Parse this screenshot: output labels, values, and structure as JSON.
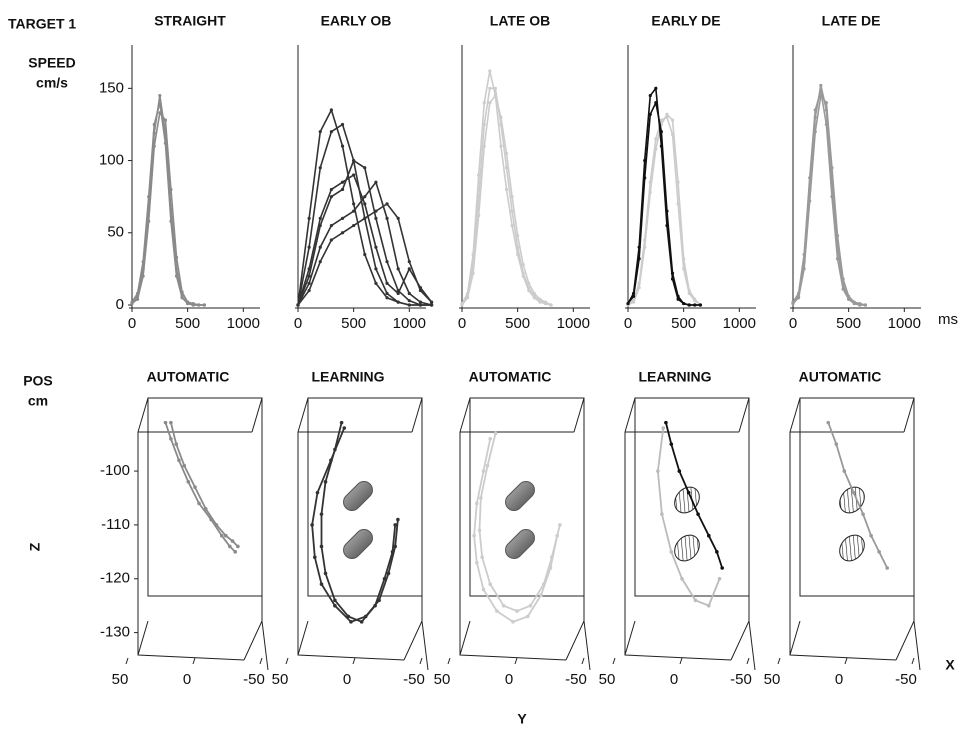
{
  "figure_label": "TARGET 1",
  "speed_label": "SPEED",
  "speed_unit": "cm/s",
  "time_unit": "ms",
  "pos_label": "POS",
  "pos_unit": "cm",
  "z_axis": "Z",
  "y_axis": "Y",
  "x_axis": "X",
  "chart_data": [
    {
      "type": "line",
      "title": "STRAIGHT",
      "x": [
        0,
        50,
        100,
        150,
        200,
        250,
        300,
        350,
        400,
        450,
        500,
        550,
        600,
        650
      ],
      "series": [
        {
          "color": "#8a8a8a",
          "values": [
            1,
            6,
            25,
            66,
            119,
            145,
            119,
            66,
            25,
            6,
            1,
            0,
            0,
            0
          ]
        },
        {
          "color": "#8a8a8a",
          "values": [
            2,
            8,
            30,
            75,
            125,
            140,
            112,
            58,
            20,
            5,
            1,
            0,
            0,
            0
          ]
        },
        {
          "color": "#8a8a8a",
          "values": [
            1,
            4,
            20,
            58,
            110,
            133,
            128,
            80,
            33,
            9,
            2,
            1,
            0,
            0
          ]
        }
      ],
      "xlim": [
        0,
        1150
      ],
      "ylim": [
        0,
        180
      ],
      "xticks": [
        0,
        500,
        1000
      ],
      "yticks": [
        0,
        50,
        100,
        150
      ]
    },
    {
      "type": "line",
      "title": "EARLY OB",
      "x": [
        0,
        100,
        200,
        300,
        400,
        500,
        600,
        700,
        800,
        900,
        1000,
        1100,
        1200
      ],
      "series": [
        {
          "color": "#333333",
          "values": [
            0,
            60,
            120,
            135,
            110,
            70,
            35,
            15,
            5,
            2,
            0,
            0,
            0
          ]
        },
        {
          "color": "#333333",
          "values": [
            0,
            40,
            95,
            120,
            125,
            100,
            60,
            25,
            8,
            2,
            0,
            0,
            0
          ]
        },
        {
          "color": "#333333",
          "values": [
            0,
            20,
            55,
            75,
            80,
            100,
            95,
            60,
            30,
            10,
            3,
            0,
            0
          ]
        },
        {
          "color": "#333333",
          "values": [
            0,
            15,
            40,
            55,
            60,
            65,
            75,
            85,
            60,
            25,
            8,
            2,
            0
          ]
        },
        {
          "color": "#333333",
          "values": [
            0,
            10,
            30,
            45,
            50,
            55,
            60,
            65,
            70,
            60,
            30,
            10,
            2
          ]
        },
        {
          "color": "#333333",
          "values": [
            0,
            25,
            60,
            80,
            85,
            90,
            70,
            40,
            15,
            8,
            25,
            12,
            2
          ]
        }
      ],
      "xlim": [
        0,
        1150
      ],
      "ylim": [
        0,
        180
      ],
      "xticks": [
        0,
        500,
        1000
      ]
    },
    {
      "type": "line",
      "title": "LATE OB",
      "x": [
        0,
        50,
        100,
        150,
        200,
        250,
        300,
        350,
        400,
        450,
        500,
        550,
        600,
        650,
        700,
        750,
        800
      ],
      "series": [
        {
          "color": "#cccccc",
          "values": [
            1,
            8,
            35,
            90,
            140,
            162,
            145,
            110,
            80,
            55,
            35,
            20,
            10,
            5,
            2,
            1,
            0
          ]
        },
        {
          "color": "#cccccc",
          "values": [
            1,
            6,
            28,
            75,
            125,
            150,
            150,
            125,
            95,
            65,
            40,
            22,
            12,
            6,
            3,
            1,
            0
          ]
        },
        {
          "color": "#cccccc",
          "values": [
            0,
            5,
            22,
            62,
            110,
            140,
            145,
            130,
            105,
            75,
            48,
            28,
            15,
            8,
            4,
            2,
            0
          ]
        }
      ],
      "xlim": [
        0,
        1150
      ],
      "ylim": [
        0,
        180
      ],
      "xticks": [
        0,
        500,
        1000
      ]
    },
    {
      "type": "line",
      "title": "EARLY  DE",
      "x": [
        0,
        50,
        100,
        150,
        200,
        250,
        300,
        350,
        400,
        450,
        500,
        550,
        600,
        650
      ],
      "series": [
        {
          "color": "#cccccc",
          "values": [
            0,
            3,
            15,
            45,
            85,
            115,
            128,
            130,
            118,
            70,
            25,
            8,
            3,
            0
          ]
        },
        {
          "color": "#cccccc",
          "values": [
            0,
            2,
            12,
            40,
            78,
            108,
            125,
            132,
            128,
            85,
            32,
            10,
            4,
            0
          ]
        },
        {
          "color": "#111111",
          "values": [
            1,
            8,
            40,
            100,
            145,
            150,
            110,
            55,
            18,
            4,
            1,
            0,
            0,
            0
          ]
        },
        {
          "color": "#111111",
          "values": [
            1,
            6,
            32,
            88,
            132,
            140,
            120,
            65,
            22,
            6,
            1,
            0,
            0,
            0
          ]
        }
      ],
      "xlim": [
        0,
        1150
      ],
      "ylim": [
        0,
        180
      ],
      "xticks": [
        0,
        500,
        1000
      ]
    },
    {
      "type": "line",
      "title": "LATE  DE",
      "x": [
        0,
        50,
        100,
        150,
        200,
        250,
        300,
        350,
        400,
        450,
        500,
        550,
        600,
        650
      ],
      "series": [
        {
          "color": "#999999",
          "values": [
            1,
            6,
            30,
            80,
            130,
            152,
            135,
            85,
            40,
            14,
            4,
            1,
            0,
            0
          ]
        },
        {
          "color": "#999999",
          "values": [
            1,
            5,
            25,
            72,
            120,
            145,
            140,
            95,
            48,
            18,
            6,
            2,
            1,
            0
          ]
        },
        {
          "color": "#999999",
          "values": [
            2,
            8,
            35,
            88,
            135,
            148,
            125,
            75,
            32,
            11,
            4,
            1,
            0,
            0
          ]
        }
      ],
      "xlim": [
        0,
        1150
      ],
      "ylim": [
        0,
        180
      ],
      "xticks": [
        0,
        500,
        1000
      ]
    },
    {
      "type": "trajectory",
      "title": "AUTOMATIC",
      "series": [
        {
          "color": "#8a8a8a",
          "x": [
            22,
            18,
            12,
            5,
            -3,
            -12,
            -20,
            -26,
            -30
          ],
          "values": [
            -91,
            -94,
            -98,
            -102,
            -106,
            -109,
            -112,
            -114,
            -115
          ]
        },
        {
          "color": "#8a8a8a",
          "x": [
            18,
            14,
            8,
            0,
            -8,
            -16,
            -23,
            -28,
            -32
          ],
          "values": [
            -91,
            -95,
            -99,
            -103,
            -107,
            -110,
            -112,
            -113,
            -114
          ]
        }
      ],
      "xlim": [
        50,
        -50
      ],
      "ylim": [
        -131,
        -92
      ],
      "xticks": [
        50,
        0,
        -50
      ],
      "yticks": [
        -100,
        -110,
        -120,
        -130
      ]
    },
    {
      "type": "trajectory",
      "title": "LEARNING",
      "series": [
        {
          "color": "#333333",
          "x": [
            10,
            15,
            22,
            25,
            25,
            22,
            15,
            5,
            -5,
            -15,
            -22,
            -28,
            -30
          ],
          "values": [
            -91,
            -96,
            -102,
            -108,
            -114,
            -119,
            -124,
            -127,
            -128,
            -125,
            -120,
            -115,
            -110
          ]
        },
        {
          "color": "#333333",
          "x": [
            8,
            18,
            28,
            32,
            30,
            25,
            15,
            3,
            -8,
            -18,
            -25,
            -30,
            -32
          ],
          "values": [
            -92,
            -98,
            -104,
            -110,
            -116,
            -121,
            -125,
            -128,
            -127,
            -124,
            -119,
            -114,
            -109
          ]
        }
      ],
      "xlim": [
        50,
        -50
      ],
      "ylim": [
        -131,
        -92
      ],
      "xticks": [
        50,
        0,
        -50
      ]
    },
    {
      "type": "trajectory",
      "title": "AUTOMATIC",
      "series": [
        {
          "color": "#cccccc",
          "x": [
            20,
            25,
            30,
            32,
            30,
            25,
            15,
            3,
            -8,
            -18,
            -25,
            -30
          ],
          "values": [
            -94,
            -100,
            -106,
            -112,
            -117,
            -122,
            -126,
            -128,
            -127,
            -123,
            -118,
            -112
          ]
        },
        {
          "color": "#cccccc",
          "x": [
            16,
            22,
            27,
            28,
            26,
            20,
            10,
            0,
            -10,
            -20,
            -26,
            -32
          ],
          "values": [
            -93,
            -99,
            -105,
            -111,
            -116,
            -121,
            -125,
            -126,
            -125,
            -121,
            -116,
            -110
          ]
        }
      ],
      "xlim": [
        50,
        -50
      ],
      "ylim": [
        -131,
        -92
      ],
      "xticks": [
        50,
        0,
        -50
      ]
    },
    {
      "type": "trajectory",
      "title": "LEARNING",
      "series": [
        {
          "color": "#bbbbbb",
          "x": [
            14,
            18,
            15,
            8,
            0,
            -10,
            -20,
            -28
          ],
          "values": [
            -92,
            -100,
            -108,
            -115,
            -120,
            -124,
            -125,
            -120
          ]
        },
        {
          "color": "#111111",
          "x": [
            12,
            8,
            2,
            -5,
            -12,
            -20,
            -26,
            -30
          ],
          "values": [
            -91,
            -95,
            -100,
            -104,
            -108,
            -112,
            -115,
            -118
          ]
        }
      ],
      "xlim": [
        50,
        -50
      ],
      "ylim": [
        -131,
        -92
      ],
      "xticks": [
        50,
        0,
        -50
      ]
    },
    {
      "type": "trajectory",
      "title": "AUTOMATIC",
      "series": [
        {
          "color": "#999999",
          "x": [
            14,
            8,
            2,
            -5,
            -12,
            -18,
            -24,
            -30
          ],
          "values": [
            -91,
            -95,
            -100,
            -104,
            -108,
            -112,
            -115,
            -118
          ]
        }
      ],
      "xlim": [
        50,
        -50
      ],
      "ylim": [
        -131,
        -92
      ],
      "xticks": [
        50,
        0,
        -50
      ]
    }
  ]
}
